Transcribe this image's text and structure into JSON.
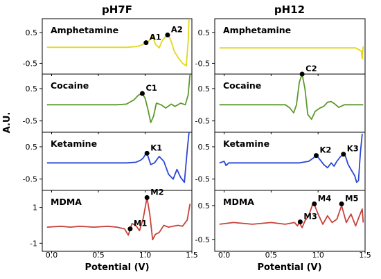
{
  "chart_data": {
    "type": "line",
    "ylabel": "A.U.",
    "xlabel": "Potential (V)",
    "xlim": [
      -0.1,
      1.5
    ],
    "x_ticks": [
      "0.0",
      "0.5",
      "1.0",
      "1.5"
    ],
    "columns": [
      {
        "title": "pH7F",
        "panels": [
          {
            "label": "Amphetamine",
            "color": "#e3d816",
            "ylim": [
              -0.85,
              0.95
            ],
            "y_ticks": [
              "0.5",
              "-0.5"
            ],
            "y_tick_values": [
              0.5,
              -0.5
            ],
            "points": [
              [
                -0.05,
                0.02
              ],
              [
                0.2,
                0.02
              ],
              [
                0.5,
                0.02
              ],
              [
                0.8,
                0.02
              ],
              [
                0.9,
                0.04
              ],
              [
                0.95,
                0.08
              ],
              [
                1.0,
                0.15
              ],
              [
                1.04,
                0.23
              ],
              [
                1.08,
                0.38
              ],
              [
                1.11,
                0.12
              ],
              [
                1.15,
                0.0
              ],
              [
                1.18,
                0.22
              ],
              [
                1.22,
                0.38
              ],
              [
                1.25,
                0.42
              ],
              [
                1.28,
                0.2
              ],
              [
                1.31,
                -0.1
              ],
              [
                1.35,
                -0.3
              ],
              [
                1.4,
                -0.5
              ],
              [
                1.44,
                -0.58
              ],
              [
                1.46,
                0.2
              ],
              [
                1.47,
                0.95
              ]
            ],
            "markers": [
              {
                "label": "A1",
                "x": 1.01,
                "y": 0.17
              },
              {
                "label": "A2",
                "x": 1.24,
                "y": 0.42
              }
            ]
          },
          {
            "label": "Cocaine",
            "color": "#5c9a2a",
            "ylim": [
              -0.85,
              0.95
            ],
            "y_ticks": [
              "0.5",
              "-0.5"
            ],
            "y_tick_values": [
              0.5,
              -0.5
            ],
            "points": [
              [
                -0.05,
                0.0
              ],
              [
                0.2,
                0.0
              ],
              [
                0.5,
                0.0
              ],
              [
                0.7,
                0.0
              ],
              [
                0.8,
                0.02
              ],
              [
                0.88,
                0.15
              ],
              [
                0.93,
                0.3
              ],
              [
                0.97,
                0.35
              ],
              [
                1.0,
                0.2
              ],
              [
                1.03,
                -0.15
              ],
              [
                1.06,
                -0.55
              ],
              [
                1.09,
                -0.35
              ],
              [
                1.12,
                0.05
              ],
              [
                1.17,
                0.0
              ],
              [
                1.22,
                -0.1
              ],
              [
                1.28,
                0.02
              ],
              [
                1.32,
                -0.05
              ],
              [
                1.38,
                0.05
              ],
              [
                1.43,
                0.0
              ],
              [
                1.46,
                0.3
              ],
              [
                1.48,
                0.95
              ]
            ],
            "markers": [
              {
                "label": "C1",
                "x": 0.97,
                "y": 0.35
              }
            ]
          },
          {
            "label": "Ketamine",
            "color": "#2b46d6",
            "ylim": [
              -0.85,
              0.95
            ],
            "y_ticks": [
              "0.5",
              "-0.5"
            ],
            "y_tick_values": [
              0.5,
              -0.5
            ],
            "points": [
              [
                -0.05,
                0.0
              ],
              [
                0.2,
                0.0
              ],
              [
                0.5,
                0.0
              ],
              [
                0.8,
                0.0
              ],
              [
                0.9,
                0.02
              ],
              [
                0.95,
                0.08
              ],
              [
                0.98,
                0.15
              ],
              [
                1.0,
                0.25
              ],
              [
                1.02,
                0.3
              ],
              [
                1.06,
                -0.05
              ],
              [
                1.1,
                0.0
              ],
              [
                1.15,
                0.2
              ],
              [
                1.2,
                0.05
              ],
              [
                1.25,
                -0.35
              ],
              [
                1.3,
                -0.5
              ],
              [
                1.34,
                -0.2
              ],
              [
                1.38,
                -0.45
              ],
              [
                1.42,
                -0.6
              ],
              [
                1.45,
                0.4
              ],
              [
                1.47,
                0.95
              ]
            ],
            "markers": [
              {
                "label": "K1",
                "x": 1.02,
                "y": 0.3
              }
            ]
          },
          {
            "label": "MDMA",
            "color": "#c8413a",
            "ylim": [
              -1.45,
              1.95
            ],
            "y_ticks": [
              "1",
              "-1"
            ],
            "y_tick_values": [
              1,
              -1
            ],
            "points": [
              [
                -0.05,
                -0.1
              ],
              [
                0.1,
                -0.05
              ],
              [
                0.2,
                -0.1
              ],
              [
                0.3,
                -0.05
              ],
              [
                0.45,
                -0.1
              ],
              [
                0.6,
                -0.05
              ],
              [
                0.7,
                -0.1
              ],
              [
                0.78,
                -0.2
              ],
              [
                0.82,
                -0.55
              ],
              [
                0.86,
                0.1
              ],
              [
                0.9,
                0.0
              ],
              [
                0.94,
                -0.3
              ],
              [
                0.98,
                0.4
              ],
              [
                1.02,
                1.55
              ],
              [
                1.05,
                0.6
              ],
              [
                1.08,
                -0.8
              ],
              [
                1.11,
                -0.5
              ],
              [
                1.15,
                -0.4
              ],
              [
                1.2,
                0.0
              ],
              [
                1.25,
                -0.1
              ],
              [
                1.3,
                -0.05
              ],
              [
                1.35,
                0.0
              ],
              [
                1.4,
                -0.05
              ],
              [
                1.45,
                0.3
              ],
              [
                1.48,
                1.2
              ]
            ],
            "markers": [
              {
                "label": "M1",
                "x": 0.84,
                "y": -0.2
              },
              {
                "label": "M2",
                "x": 1.02,
                "y": 1.55
              }
            ]
          }
        ]
      },
      {
        "title": "pH12",
        "panels": [
          {
            "label": "Amphetamine",
            "color": "#e3d816",
            "ylim": [
              -0.85,
              0.95
            ],
            "y_ticks": [
              "0.5",
              "-0.5"
            ],
            "y_tick_values": [
              0.5,
              -0.5
            ],
            "points": [
              [
                -0.05,
                0.0
              ],
              [
                0.3,
                0.0
              ],
              [
                0.6,
                0.0
              ],
              [
                0.9,
                0.0
              ],
              [
                1.2,
                0.0
              ],
              [
                1.4,
                0.0
              ],
              [
                1.46,
                -0.1
              ],
              [
                1.47,
                -0.35
              ],
              [
                1.48,
                0.05
              ]
            ],
            "markers": []
          },
          {
            "label": "Cocaine",
            "color": "#5c9a2a",
            "ylim": [
              -0.85,
              0.95
            ],
            "y_ticks": [
              "0.5",
              "-0.5"
            ],
            "y_tick_values": [
              0.5,
              -0.5
            ],
            "points": [
              [
                -0.05,
                0.0
              ],
              [
                0.3,
                0.0
              ],
              [
                0.55,
                0.0
              ],
              [
                0.65,
                0.0
              ],
              [
                0.7,
                -0.1
              ],
              [
                0.74,
                -0.25
              ],
              [
                0.77,
                0.0
              ],
              [
                0.8,
                0.7
              ],
              [
                0.83,
                0.95
              ],
              [
                0.86,
                0.5
              ],
              [
                0.89,
                -0.3
              ],
              [
                0.93,
                -0.45
              ],
              [
                0.97,
                -0.2
              ],
              [
                1.02,
                -0.1
              ],
              [
                1.06,
                -0.05
              ],
              [
                1.1,
                0.08
              ],
              [
                1.14,
                0.1
              ],
              [
                1.18,
                0.02
              ],
              [
                1.22,
                -0.08
              ],
              [
                1.28,
                0.0
              ],
              [
                1.35,
                0.0
              ],
              [
                1.48,
                0.0
              ]
            ],
            "markers": [
              {
                "label": "C2",
                "x": 0.83,
                "y": 0.95
              }
            ]
          },
          {
            "label": "Ketamine",
            "color": "#2b46d6",
            "ylim": [
              -0.85,
              0.95
            ],
            "y_ticks": [
              "0.5",
              "-0.5"
            ],
            "y_tick_values": [
              0.5,
              -0.5
            ],
            "points": [
              [
                -0.05,
                0.0
              ],
              [
                0.0,
                0.05
              ],
              [
                0.02,
                -0.08
              ],
              [
                0.05,
                0.0
              ],
              [
                0.3,
                0.0
              ],
              [
                0.6,
                0.0
              ],
              [
                0.8,
                0.0
              ],
              [
                0.9,
                0.05
              ],
              [
                0.95,
                0.15
              ],
              [
                0.98,
                0.25
              ],
              [
                1.02,
                0.1
              ],
              [
                1.06,
                -0.05
              ],
              [
                1.1,
                -0.15
              ],
              [
                1.14,
                0.0
              ],
              [
                1.17,
                -0.1
              ],
              [
                1.2,
                0.05
              ],
              [
                1.24,
                0.2
              ],
              [
                1.28,
                0.3
              ],
              [
                1.32,
                -0.05
              ],
              [
                1.36,
                -0.25
              ],
              [
                1.39,
                -0.4
              ],
              [
                1.41,
                -0.6
              ],
              [
                1.43,
                -0.55
              ],
              [
                1.45,
                0.3
              ],
              [
                1.47,
                0.9
              ]
            ],
            "markers": [
              {
                "label": "K2",
                "x": 0.98,
                "y": 0.23
              },
              {
                "label": "K3",
                "x": 1.27,
                "y": 0.27
              }
            ]
          },
          {
            "label": "MDMA",
            "color": "#c8413a",
            "ylim": [
              -0.85,
              0.95
            ],
            "y_ticks": [
              "0.5",
              "-0.5"
            ],
            "y_tick_values": [
              0.5,
              -0.5
            ],
            "points": [
              [
                -0.05,
                -0.05
              ],
              [
                0.1,
                0.0
              ],
              [
                0.3,
                -0.05
              ],
              [
                0.5,
                0.0
              ],
              [
                0.65,
                -0.05
              ],
              [
                0.75,
                0.0
              ],
              [
                0.78,
                -0.1
              ],
              [
                0.8,
                0.0
              ],
              [
                0.83,
                -0.15
              ],
              [
                0.86,
                0.05
              ],
              [
                0.9,
                0.2
              ],
              [
                0.95,
                0.6
              ],
              [
                1.0,
                0.25
              ],
              [
                1.05,
                -0.05
              ],
              [
                1.1,
                0.2
              ],
              [
                1.15,
                0.0
              ],
              [
                1.2,
                0.1
              ],
              [
                1.25,
                0.5
              ],
              [
                1.3,
                0.0
              ],
              [
                1.35,
                0.25
              ],
              [
                1.4,
                -0.1
              ],
              [
                1.44,
                0.2
              ],
              [
                1.47,
                0.4
              ],
              [
                1.48,
                0.0
              ]
            ],
            "markers": [
              {
                "label": "M3",
                "x": 0.81,
                "y": 0.02
              },
              {
                "label": "M4",
                "x": 0.96,
                "y": 0.55
              },
              {
                "label": "M5",
                "x": 1.25,
                "y": 0.55
              }
            ]
          }
        ]
      }
    ]
  }
}
